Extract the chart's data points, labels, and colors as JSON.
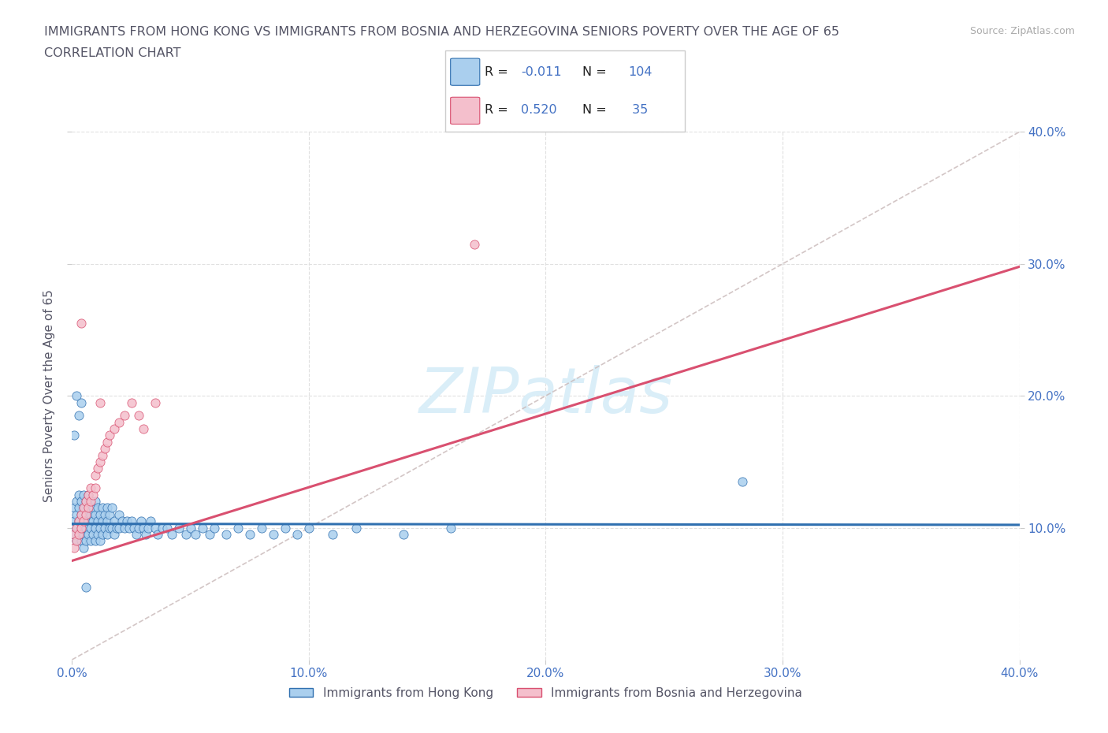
{
  "title_line1": "IMMIGRANTS FROM HONG KONG VS IMMIGRANTS FROM BOSNIA AND HERZEGOVINA SENIORS POVERTY OVER THE AGE OF 65",
  "title_line2": "CORRELATION CHART",
  "source_text": "Source: ZipAtlas.com",
  "ylabel": "Seniors Poverty Over the Age of 65",
  "xlim": [
    0.0,
    0.4
  ],
  "ylim": [
    0.0,
    0.4
  ],
  "legend_label_x": "Immigrants from Hong Kong",
  "legend_label_y": "Immigrants from Bosnia and Herzegovina",
  "r_hk": -0.011,
  "n_hk": 104,
  "r_bh": 0.52,
  "n_bh": 35,
  "color_hk": "#aacfee",
  "color_bh": "#f4bfcc",
  "line_color_hk": "#3070b0",
  "line_color_bh": "#d95070",
  "line_color_ref": "#c8b8b8",
  "title_color": "#555566",
  "tick_color": "#4472c4",
  "watermark_color": "#daeef8",
  "background_color": "#ffffff",
  "grid_color": "#e0e0e0",
  "hk_x": [
    0.001,
    0.001,
    0.001,
    0.002,
    0.002,
    0.002,
    0.002,
    0.003,
    0.003,
    0.003,
    0.003,
    0.004,
    0.004,
    0.004,
    0.004,
    0.005,
    0.005,
    0.005,
    0.005,
    0.005,
    0.006,
    0.006,
    0.006,
    0.006,
    0.007,
    0.007,
    0.007,
    0.007,
    0.008,
    0.008,
    0.008,
    0.009,
    0.009,
    0.009,
    0.01,
    0.01,
    0.01,
    0.01,
    0.011,
    0.011,
    0.011,
    0.012,
    0.012,
    0.012,
    0.013,
    0.013,
    0.013,
    0.014,
    0.014,
    0.015,
    0.015,
    0.015,
    0.016,
    0.016,
    0.017,
    0.017,
    0.018,
    0.018,
    0.019,
    0.02,
    0.02,
    0.021,
    0.022,
    0.023,
    0.024,
    0.025,
    0.026,
    0.027,
    0.028,
    0.029,
    0.03,
    0.031,
    0.032,
    0.033,
    0.035,
    0.036,
    0.038,
    0.04,
    0.042,
    0.045,
    0.048,
    0.05,
    0.052,
    0.055,
    0.058,
    0.06,
    0.065,
    0.07,
    0.075,
    0.08,
    0.085,
    0.09,
    0.095,
    0.1,
    0.11,
    0.12,
    0.14,
    0.16,
    0.002,
    0.001,
    0.003,
    0.004,
    0.283,
    0.006
  ],
  "hk_y": [
    0.105,
    0.115,
    0.095,
    0.12,
    0.1,
    0.11,
    0.09,
    0.115,
    0.105,
    0.095,
    0.125,
    0.11,
    0.1,
    0.12,
    0.09,
    0.115,
    0.105,
    0.095,
    0.125,
    0.085,
    0.11,
    0.1,
    0.12,
    0.09,
    0.115,
    0.105,
    0.095,
    0.125,
    0.11,
    0.1,
    0.09,
    0.115,
    0.105,
    0.095,
    0.11,
    0.1,
    0.12,
    0.09,
    0.115,
    0.105,
    0.095,
    0.11,
    0.1,
    0.09,
    0.115,
    0.105,
    0.095,
    0.11,
    0.1,
    0.115,
    0.105,
    0.095,
    0.11,
    0.1,
    0.115,
    0.1,
    0.105,
    0.095,
    0.1,
    0.11,
    0.1,
    0.105,
    0.1,
    0.105,
    0.1,
    0.105,
    0.1,
    0.095,
    0.1,
    0.105,
    0.1,
    0.095,
    0.1,
    0.105,
    0.1,
    0.095,
    0.1,
    0.1,
    0.095,
    0.1,
    0.095,
    0.1,
    0.095,
    0.1,
    0.095,
    0.1,
    0.095,
    0.1,
    0.095,
    0.1,
    0.095,
    0.1,
    0.095,
    0.1,
    0.095,
    0.1,
    0.095,
    0.1,
    0.2,
    0.17,
    0.185,
    0.195,
    0.135,
    0.055
  ],
  "bh_x": [
    0.001,
    0.001,
    0.002,
    0.002,
    0.003,
    0.003,
    0.004,
    0.004,
    0.005,
    0.005,
    0.006,
    0.006,
    0.007,
    0.007,
    0.008,
    0.008,
    0.009,
    0.01,
    0.01,
    0.011,
    0.012,
    0.013,
    0.014,
    0.015,
    0.016,
    0.018,
    0.02,
    0.022,
    0.025,
    0.028,
    0.03,
    0.035,
    0.17,
    0.004,
    0.012
  ],
  "bh_y": [
    0.085,
    0.095,
    0.09,
    0.1,
    0.095,
    0.105,
    0.1,
    0.11,
    0.105,
    0.115,
    0.11,
    0.12,
    0.115,
    0.125,
    0.12,
    0.13,
    0.125,
    0.13,
    0.14,
    0.145,
    0.15,
    0.155,
    0.16,
    0.165,
    0.17,
    0.175,
    0.18,
    0.185,
    0.195,
    0.185,
    0.175,
    0.195,
    0.315,
    0.255,
    0.195
  ]
}
